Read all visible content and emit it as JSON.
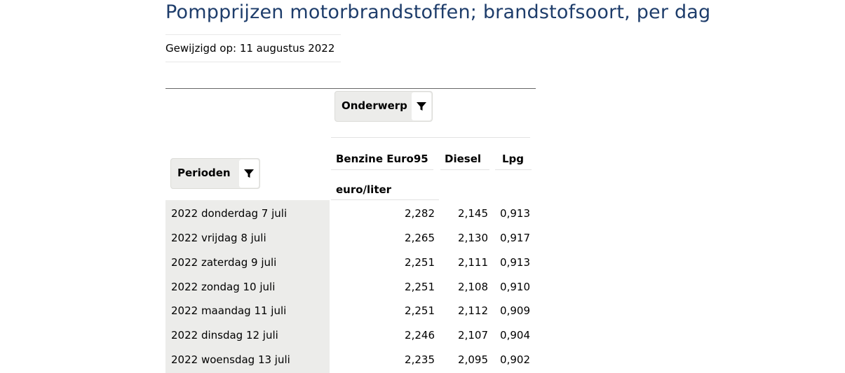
{
  "page": {
    "title": "Pompprijzen motorbrandstoffen; brandstofsoort, per dag",
    "modified": "Gewijzigd op: 11 augustus 2022"
  },
  "filters": {
    "onderwerp_label": "Onderwerp",
    "perioden_label": "Perioden",
    "icon": "filter-icon"
  },
  "columns": [
    {
      "label": "Benzine Euro95"
    },
    {
      "label": "Diesel"
    },
    {
      "label": "Lpg"
    }
  ],
  "unit": "euro/liter",
  "rows": [
    {
      "period": "2022 donderdag 7 juli",
      "benzine": "2,282",
      "diesel": "2,145",
      "lpg": "0,913"
    },
    {
      "period": "2022 vrijdag 8 juli",
      "benzine": "2,265",
      "diesel": "2,130",
      "lpg": "0,917"
    },
    {
      "period": "2022 zaterdag 9 juli",
      "benzine": "2,251",
      "diesel": "2,111",
      "lpg": "0,913"
    },
    {
      "period": "2022 zondag 10 juli",
      "benzine": "2,251",
      "diesel": "2,108",
      "lpg": "0,910"
    },
    {
      "period": "2022 maandag 11 juli",
      "benzine": "2,251",
      "diesel": "2,112",
      "lpg": "0,909"
    },
    {
      "period": "2022 dinsdag 12 juli",
      "benzine": "2,246",
      "diesel": "2,107",
      "lpg": "0,904"
    },
    {
      "period": "2022 woensdag 13 juli",
      "benzine": "2,235",
      "diesel": "2,095",
      "lpg": "0,902"
    }
  ],
  "colors": {
    "title": "#1e3d6b",
    "period_cell_bg": "#ececea"
  }
}
